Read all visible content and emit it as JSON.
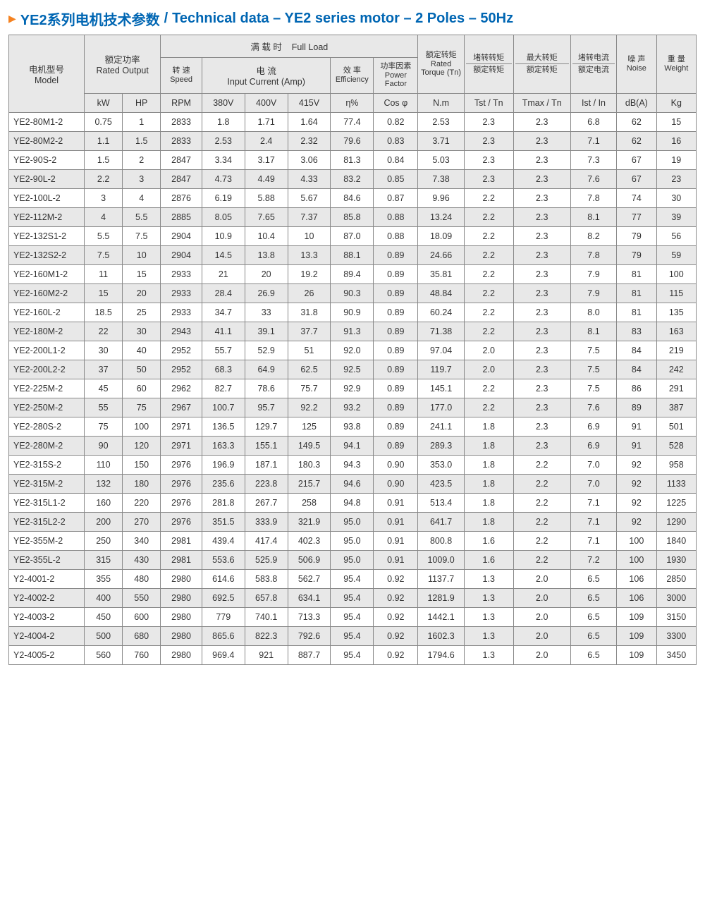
{
  "title": {
    "arrow": "▶",
    "cn": "YE2系列电机技术参数",
    "sep": "/",
    "en": "Technical data – YE2 series motor – 2 Poles – 50Hz"
  },
  "headers": {
    "model_cn": "电机型号",
    "model_en": "Model",
    "rated_output_cn": "额定功率",
    "rated_output_en": "Rated Output",
    "full_load_cn": "满 载 时",
    "full_load_en": "Full Load",
    "speed_cn": "转 速",
    "speed_en": "Speed",
    "current_cn": "电 流",
    "current_en": "Input  Current (Amp)",
    "eff_cn": "效 率",
    "eff_en": "Efficiency",
    "pf_cn": "功率因素",
    "pf_en": "Power Factor",
    "torque_cn": "额定转矩",
    "torque_en": "Rated Torque (Tn)",
    "tst_top": "堵转转矩",
    "tst_bot": "额定转矩",
    "tmax_top": "最大转矩",
    "tmax_bot": "额定转矩",
    "ist_top": "堵转电流",
    "ist_bot": "额定电流",
    "noise_cn": "噪 声",
    "noise_en": "Noise",
    "weight_cn": "重 量",
    "weight_en": "Weight",
    "kw": "kW",
    "hp": "HP",
    "rpm": "RPM",
    "v380": "380V",
    "v400": "400V",
    "v415": "415V",
    "eta": "η%",
    "cos": "Cos φ",
    "nm": "N.m",
    "tst": "Tst / Tn",
    "tmax": "Tmax / Tn",
    "ist": "Ist / In",
    "db": "dB(A)",
    "kg": "Kg"
  },
  "rows": [
    [
      "YE2-80M1-2",
      "0.75",
      "1",
      "2833",
      "1.8",
      "1.71",
      "1.64",
      "77.4",
      "0.82",
      "2.53",
      "2.3",
      "2.3",
      "6.8",
      "62",
      "15"
    ],
    [
      "YE2-80M2-2",
      "1.1",
      "1.5",
      "2833",
      "2.53",
      "2.4",
      "2.32",
      "79.6",
      "0.83",
      "3.71",
      "2.3",
      "2.3",
      "7.1",
      "62",
      "16"
    ],
    [
      "YE2-90S-2",
      "1.5",
      "2",
      "2847",
      "3.34",
      "3.17",
      "3.06",
      "81.3",
      "0.84",
      "5.03",
      "2.3",
      "2.3",
      "7.3",
      "67",
      "19"
    ],
    [
      "YE2-90L-2",
      "2.2",
      "3",
      "2847",
      "4.73",
      "4.49",
      "4.33",
      "83.2",
      "0.85",
      "7.38",
      "2.3",
      "2.3",
      "7.6",
      "67",
      "23"
    ],
    [
      "YE2-100L-2",
      "3",
      "4",
      "2876",
      "6.19",
      "5.88",
      "5.67",
      "84.6",
      "0.87",
      "9.96",
      "2.2",
      "2.3",
      "7.8",
      "74",
      "30"
    ],
    [
      "YE2-112M-2",
      "4",
      "5.5",
      "2885",
      "8.05",
      "7.65",
      "7.37",
      "85.8",
      "0.88",
      "13.24",
      "2.2",
      "2.3",
      "8.1",
      "77",
      "39"
    ],
    [
      "YE2-132S1-2",
      "5.5",
      "7.5",
      "2904",
      "10.9",
      "10.4",
      "10",
      "87.0",
      "0.88",
      "18.09",
      "2.2",
      "2.3",
      "8.2",
      "79",
      "56"
    ],
    [
      "YE2-132S2-2",
      "7.5",
      "10",
      "2904",
      "14.5",
      "13.8",
      "13.3",
      "88.1",
      "0.89",
      "24.66",
      "2.2",
      "2.3",
      "7.8",
      "79",
      "59"
    ],
    [
      "YE2-160M1-2",
      "11",
      "15",
      "2933",
      "21",
      "20",
      "19.2",
      "89.4",
      "0.89",
      "35.81",
      "2.2",
      "2.3",
      "7.9",
      "81",
      "100"
    ],
    [
      "YE2-160M2-2",
      "15",
      "20",
      "2933",
      "28.4",
      "26.9",
      "26",
      "90.3",
      "0.89",
      "48.84",
      "2.2",
      "2.3",
      "7.9",
      "81",
      "115"
    ],
    [
      "YE2-160L-2",
      "18.5",
      "25",
      "2933",
      "34.7",
      "33",
      "31.8",
      "90.9",
      "0.89",
      "60.24",
      "2.2",
      "2.3",
      "8.0",
      "81",
      "135"
    ],
    [
      "YE2-180M-2",
      "22",
      "30",
      "2943",
      "41.1",
      "39.1",
      "37.7",
      "91.3",
      "0.89",
      "71.38",
      "2.2",
      "2.3",
      "8.1",
      "83",
      "163"
    ],
    [
      "YE2-200L1-2",
      "30",
      "40",
      "2952",
      "55.7",
      "52.9",
      "51",
      "92.0",
      "0.89",
      "97.04",
      "2.0",
      "2.3",
      "7.5",
      "84",
      "219"
    ],
    [
      "YE2-200L2-2",
      "37",
      "50",
      "2952",
      "68.3",
      "64.9",
      "62.5",
      "92.5",
      "0.89",
      "119.7",
      "2.0",
      "2.3",
      "7.5",
      "84",
      "242"
    ],
    [
      "YE2-225M-2",
      "45",
      "60",
      "2962",
      "82.7",
      "78.6",
      "75.7",
      "92.9",
      "0.89",
      "145.1",
      "2.2",
      "2.3",
      "7.5",
      "86",
      "291"
    ],
    [
      "YE2-250M-2",
      "55",
      "75",
      "2967",
      "100.7",
      "95.7",
      "92.2",
      "93.2",
      "0.89",
      "177.0",
      "2.2",
      "2.3",
      "7.6",
      "89",
      "387"
    ],
    [
      "YE2-280S-2",
      "75",
      "100",
      "2971",
      "136.5",
      "129.7",
      "125",
      "93.8",
      "0.89",
      "241.1",
      "1.8",
      "2.3",
      "6.9",
      "91",
      "501"
    ],
    [
      "YE2-280M-2",
      "90",
      "120",
      "2971",
      "163.3",
      "155.1",
      "149.5",
      "94.1",
      "0.89",
      "289.3",
      "1.8",
      "2.3",
      "6.9",
      "91",
      "528"
    ],
    [
      "YE2-315S-2",
      "110",
      "150",
      "2976",
      "196.9",
      "187.1",
      "180.3",
      "94.3",
      "0.90",
      "353.0",
      "1.8",
      "2.2",
      "7.0",
      "92",
      "958"
    ],
    [
      "YE2-315M-2",
      "132",
      "180",
      "2976",
      "235.6",
      "223.8",
      "215.7",
      "94.6",
      "0.90",
      "423.5",
      "1.8",
      "2.2",
      "7.0",
      "92",
      "1133"
    ],
    [
      "YE2-315L1-2",
      "160",
      "220",
      "2976",
      "281.8",
      "267.7",
      "258",
      "94.8",
      "0.91",
      "513.4",
      "1.8",
      "2.2",
      "7.1",
      "92",
      "1225"
    ],
    [
      "YE2-315L2-2",
      "200",
      "270",
      "2976",
      "351.5",
      "333.9",
      "321.9",
      "95.0",
      "0.91",
      "641.7",
      "1.8",
      "2.2",
      "7.1",
      "92",
      "1290"
    ],
    [
      "YE2-355M-2",
      "250",
      "340",
      "2981",
      "439.4",
      "417.4",
      "402.3",
      "95.0",
      "0.91",
      "800.8",
      "1.6",
      "2.2",
      "7.1",
      "100",
      "1840"
    ],
    [
      "YE2-355L-2",
      "315",
      "430",
      "2981",
      "553.6",
      "525.9",
      "506.9",
      "95.0",
      "0.91",
      "1009.0",
      "1.6",
      "2.2",
      "7.2",
      "100",
      "1930"
    ],
    [
      "Y2-4001-2",
      "355",
      "480",
      "2980",
      "614.6",
      "583.8",
      "562.7",
      "95.4",
      "0.92",
      "1137.7",
      "1.3",
      "2.0",
      "6.5",
      "106",
      "2850"
    ],
    [
      "Y2-4002-2",
      "400",
      "550",
      "2980",
      "692.5",
      "657.8",
      "634.1",
      "95.4",
      "0.92",
      "1281.9",
      "1.3",
      "2.0",
      "6.5",
      "106",
      "3000"
    ],
    [
      "Y2-4003-2",
      "450",
      "600",
      "2980",
      "779",
      "740.1",
      "713.3",
      "95.4",
      "0.92",
      "1442.1",
      "1.3",
      "2.0",
      "6.5",
      "109",
      "3150"
    ],
    [
      "Y2-4004-2",
      "500",
      "680",
      "2980",
      "865.6",
      "822.3",
      "792.6",
      "95.4",
      "0.92",
      "1602.3",
      "1.3",
      "2.0",
      "6.5",
      "109",
      "3300"
    ],
    [
      "Y2-4005-2",
      "560",
      "760",
      "2980",
      "969.4",
      "921",
      "887.7",
      "95.4",
      "0.92",
      "1794.6",
      "1.3",
      "2.0",
      "6.5",
      "109",
      "3450"
    ]
  ]
}
